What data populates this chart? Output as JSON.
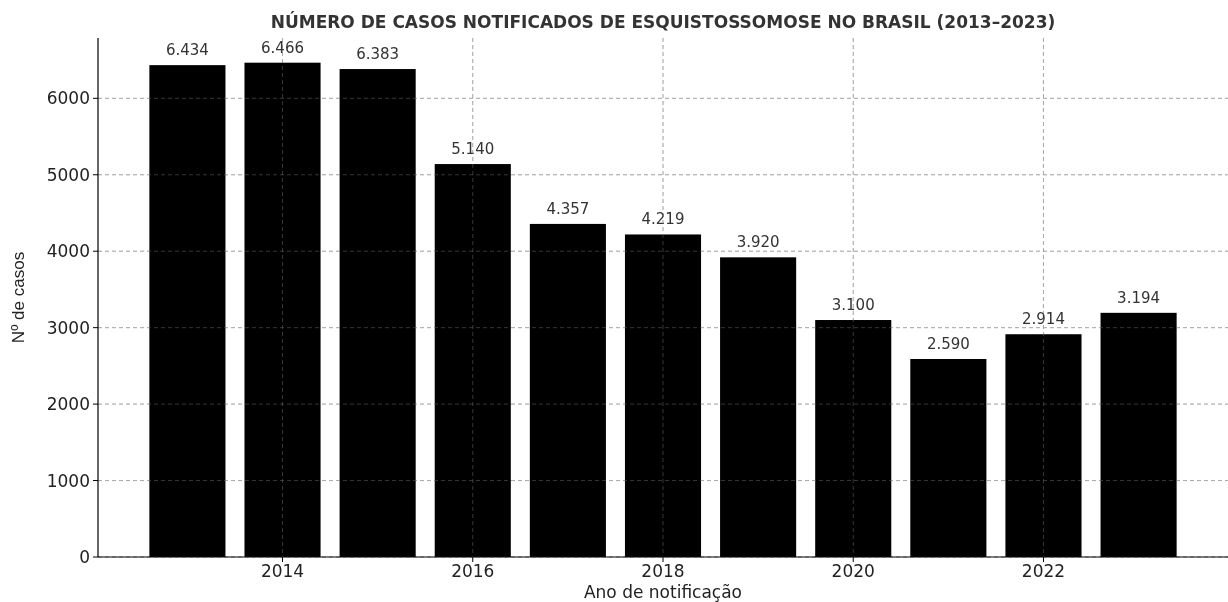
{
  "chart_data": {
    "type": "bar",
    "title": "NÚMERO DE CASOS NOTIFICADOS DE ESQUISTOSSOMOSE NO BRASIL (2013–2023)",
    "xlabel": "Ano de notificação",
    "ylabel": "Nº de casos",
    "x": [
      2013,
      2014,
      2015,
      2016,
      2017,
      2018,
      2019,
      2020,
      2021,
      2022,
      2023
    ],
    "values": [
      6434,
      6466,
      6383,
      5140,
      4357,
      4219,
      3920,
      3100,
      2590,
      2914,
      3194
    ],
    "value_labels": [
      "6.434",
      "6.466",
      "6.383",
      "5.140",
      "4.357",
      "4.219",
      "3.920",
      "3.100",
      "2.590",
      "2.914",
      "3.194"
    ],
    "color": "#000000",
    "xlim": [
      2012.06,
      2023.94
    ],
    "xticks": [
      2014,
      2016,
      2018,
      2020,
      2022
    ],
    "ylim": [
      0,
      6789
    ],
    "yticks": [
      0,
      1000,
      2000,
      3000,
      4000,
      5000,
      6000
    ],
    "grid": true
  }
}
